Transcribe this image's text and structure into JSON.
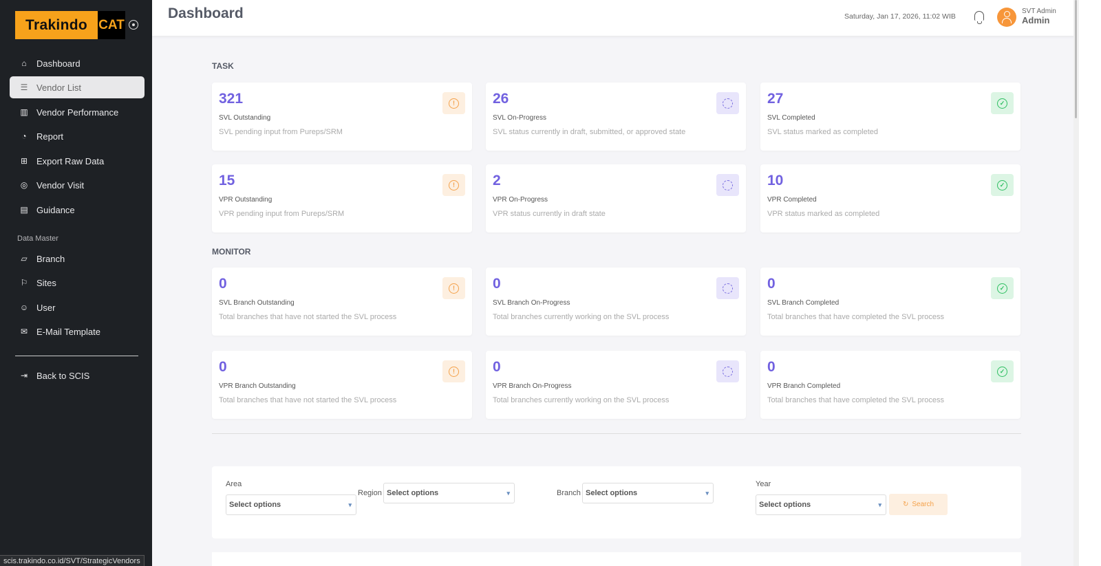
{
  "brand": {
    "name": "Trakindo",
    "mark": "CAT"
  },
  "sidebar": {
    "items": [
      {
        "label": "Dashboard",
        "icon": "home-icon"
      },
      {
        "label": "Vendor List",
        "icon": "list-icon",
        "active": true
      },
      {
        "label": "Vendor Performance",
        "icon": "bar-chart-icon"
      },
      {
        "label": "Report",
        "icon": "gauge-icon"
      },
      {
        "label": "Export Raw Data",
        "icon": "table-export-icon"
      },
      {
        "label": "Vendor Visit",
        "icon": "map-pin-icon"
      },
      {
        "label": "Guidance",
        "icon": "book-icon"
      }
    ],
    "section": "Data Master",
    "master_items": [
      {
        "label": "Branch",
        "icon": "map-icon"
      },
      {
        "label": "Sites",
        "icon": "flag-icon"
      },
      {
        "label": "User",
        "icon": "users-icon"
      },
      {
        "label": "E-Mail Template",
        "icon": "mail-icon"
      }
    ],
    "back": {
      "label": "Back to SCIS",
      "icon": "logout-icon"
    }
  },
  "header": {
    "title": "Dashboard",
    "datetime": "Saturday, Jan 17, 2026, 11:02 WIB",
    "user_name": "SVT Admin",
    "user_role": "Admin"
  },
  "task": {
    "heading": "TASK",
    "cards": [
      {
        "value": "321",
        "label": "SVL Outstanding",
        "desc": "SVL pending input from Pureps/SRM",
        "type": "warn"
      },
      {
        "value": "26",
        "label": "SVL On-Progress",
        "desc": "SVL status currently in draft, submitted, or approved state",
        "type": "prog"
      },
      {
        "value": "27",
        "label": "SVL Completed",
        "desc": "SVL status marked as completed",
        "type": "done"
      },
      {
        "value": "15",
        "label": "VPR Outstanding",
        "desc": "VPR pending input from Pureps/SRM",
        "type": "warn"
      },
      {
        "value": "2",
        "label": "VPR On-Progress",
        "desc": "VPR status currently in draft state",
        "type": "prog"
      },
      {
        "value": "10",
        "label": "VPR Completed",
        "desc": "VPR status marked as completed",
        "type": "done"
      }
    ]
  },
  "monitor": {
    "heading": "MONITOR",
    "cards": [
      {
        "value": "0",
        "label": "SVL Branch Outstanding",
        "desc": "Total branches that have not started the SVL process",
        "type": "warn"
      },
      {
        "value": "0",
        "label": "SVL Branch On-Progress",
        "desc": "Total branches currently working on the SVL process",
        "type": "prog"
      },
      {
        "value": "0",
        "label": "SVL Branch Completed",
        "desc": "Total branches that have completed the SVL process",
        "type": "done"
      },
      {
        "value": "0",
        "label": "VPR Branch Outstanding",
        "desc": "Total branches that have not started the SVL process",
        "type": "warn"
      },
      {
        "value": "0",
        "label": "VPR Branch On-Progress",
        "desc": "Total branches currently working on the SVL process",
        "type": "prog"
      },
      {
        "value": "0",
        "label": "VPR Branch Completed",
        "desc": "Total branches that have completed the SVL process",
        "type": "done"
      }
    ]
  },
  "filters": {
    "area_label": "Area",
    "region_label": "Region",
    "branch_label": "Branch",
    "year_label": "Year",
    "area": "Select options",
    "region": "Select options",
    "branch": "Select options",
    "year": "Select options",
    "search_label": "Search"
  },
  "statusbar": "scis.trakindo.co.id/SVT/StrategicVendors",
  "colors": {
    "sidebar": "#1e2125",
    "accent": "#7161e0",
    "brand": "#f7a21b",
    "warn": "#f4a14a",
    "done": "#2fbf62"
  }
}
